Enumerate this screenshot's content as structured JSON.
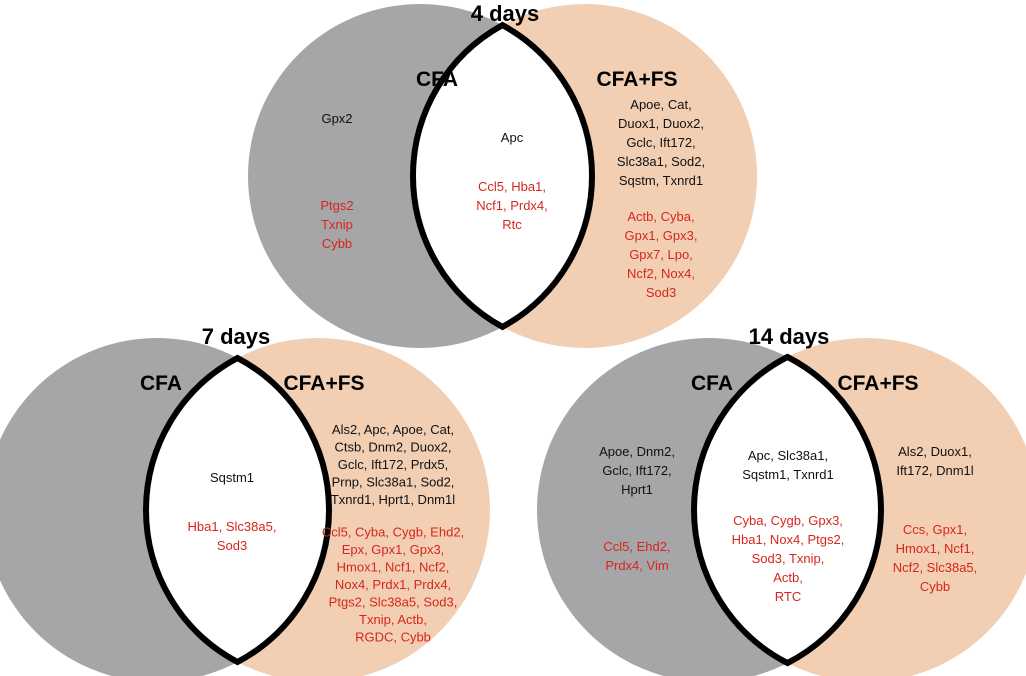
{
  "colors": {
    "cfa_fill": "#a6a5a7",
    "cfafs_fill": "#f2cfb3",
    "overlap_fill": "#ffffff",
    "outline": "#000000",
    "black_text": "#111111",
    "red_text": "#d7261e"
  },
  "venns": [
    {
      "title": "4 days",
      "left_label": "CFA",
      "right_label": "CFA+FS",
      "left_black": [
        "Gpx2"
      ],
      "left_red": [
        "Ptgs2",
        "Txnip",
        "Cybb"
      ],
      "mid_black": [
        "Apc"
      ],
      "mid_red": [
        "Ccl5, Hba1,",
        "Ncf1, Prdx4,",
        "Rtc"
      ],
      "right_black": [
        "Apoe, Cat,",
        "Duox1, Duox2,",
        "Gclc, Ift172,",
        "Slc38a1, Sod2,",
        "Sqstm, Txnrd1"
      ],
      "right_red": [
        "Actb, Cyba,",
        "Gpx1, Gpx3,",
        "Gpx7, Lpo,",
        "Ncf2, Nox4,",
        "Sod3"
      ]
    },
    {
      "title": "7 days",
      "left_label": "CFA",
      "right_label": "CFA+FS",
      "left_black": [],
      "left_red": [],
      "mid_black": [
        "Sqstm1"
      ],
      "mid_red": [
        "Hba1, Slc38a5,",
        "Sod3"
      ],
      "right_black": [
        "Als2, Apc, Apoe, Cat,",
        "Ctsb, Dnm2, Duox2,",
        "Gclc, Ift172, Prdx5,",
        "Prnp, Slc38a1, Sod2,",
        "Txnrd1, Hprt1, Dnm1l"
      ],
      "right_red": [
        "Ccl5, Cyba, Cygb, Ehd2,",
        "Epx, Gpx1, Gpx3,",
        "Hmox1, Ncf1, Ncf2,",
        "Nox4, Prdx1, Prdx4,",
        "Ptgs2, Slc38a5, Sod3,",
        "Txnip, Actb,",
        "RGDC, Cybb"
      ]
    },
    {
      "title": "14 days",
      "left_label": "CFA",
      "right_label": "CFA+FS",
      "left_black": [
        "Apoe, Dnm2,",
        "Gclc, Ift172,",
        "Hprt1"
      ],
      "left_red": [
        "Ccl5, Ehd2,",
        "Prdx4, Vim"
      ],
      "mid_black": [
        "Apc, Slc38a1,",
        "Sqstm1, Txnrd1"
      ],
      "mid_red": [
        "Cyba, Cygb, Gpx3,",
        "Hba1, Nox4, Ptgs2,",
        "Sod3, Txnip,",
        "Actb,",
        "RTC"
      ],
      "right_black": [
        "Als2, Duox1,",
        "Ift172, Dnm1l"
      ],
      "right_red": [
        "Ccs, Gpx1,",
        "Hmox1, Ncf1,",
        "Ncf2, Slc38a5,",
        "Cybb"
      ]
    }
  ]
}
